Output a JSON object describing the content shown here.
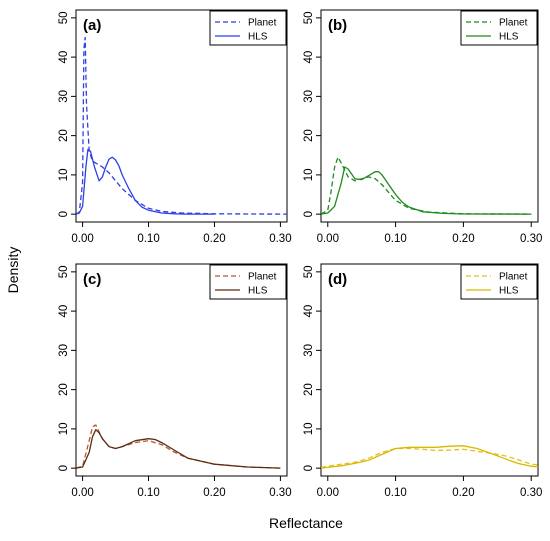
{
  "figure": {
    "ylabel": "Density",
    "xlabel": "Reflectance"
  },
  "chart_data": [
    {
      "type": "line",
      "panel_label": "(a)",
      "xlim": [
        -0.01,
        0.31
      ],
      "ylim": [
        -2,
        52
      ],
      "xticks": [
        0.0,
        0.1,
        0.2,
        0.3
      ],
      "xtick_labels": [
        "0.00",
        "0.10",
        "0.20",
        "0.30"
      ],
      "yticks": [
        0,
        10,
        20,
        30,
        40,
        50
      ],
      "ytick_labels": [
        "0",
        "10",
        "20",
        "30",
        "40",
        "50"
      ],
      "legend_position": "top-right",
      "series": [
        {
          "name": "Planet",
          "color": "#2f3fe6",
          "dash": "dashed",
          "x": [
            -0.01,
            -0.005,
            0.0,
            0.002,
            0.004,
            0.006,
            0.01,
            0.015,
            0.02,
            0.03,
            0.04,
            0.05,
            0.06,
            0.08,
            0.1,
            0.12,
            0.15,
            0.2,
            0.25,
            0.3,
            0.31
          ],
          "y": [
            0,
            0.5,
            8,
            42,
            45,
            28,
            16,
            13.5,
            13,
            12,
            10.5,
            8.5,
            6.5,
            3.5,
            1.5,
            0.7,
            0.3,
            0.1,
            0.05,
            0,
            0
          ]
        },
        {
          "name": "HLS",
          "color": "#2f3fe6",
          "dash": "solid",
          "x": [
            -0.01,
            -0.005,
            0.0,
            0.005,
            0.008,
            0.012,
            0.018,
            0.025,
            0.03,
            0.035,
            0.04,
            0.045,
            0.05,
            0.055,
            0.06,
            0.07,
            0.08,
            0.09,
            0.1,
            0.12,
            0.14,
            0.16,
            0.2
          ],
          "y": [
            0,
            0.3,
            2,
            12,
            16.5,
            16,
            12,
            8.5,
            9.5,
            12,
            14,
            14.5,
            13.8,
            12.3,
            10,
            6.5,
            3.5,
            1.8,
            1,
            0.3,
            0.1,
            0,
            0
          ]
        }
      ]
    },
    {
      "type": "line",
      "panel_label": "(b)",
      "xlim": [
        -0.01,
        0.31
      ],
      "ylim": [
        -2,
        52
      ],
      "xticks": [
        0.0,
        0.1,
        0.2,
        0.3
      ],
      "xtick_labels": [
        "0.00",
        "0.10",
        "0.20",
        "0.30"
      ],
      "yticks": [
        0,
        10,
        20,
        30,
        40,
        50
      ],
      "ytick_labels": [
        "0",
        "10",
        "20",
        "30",
        "40",
        "50"
      ],
      "legend_position": "top-right",
      "series": [
        {
          "name": "Planet",
          "color": "#1f8a1f",
          "dash": "dashed",
          "x": [
            -0.01,
            0.0,
            0.005,
            0.01,
            0.015,
            0.02,
            0.03,
            0.04,
            0.05,
            0.06,
            0.07,
            0.08,
            0.09,
            0.1,
            0.12,
            0.15,
            0.2,
            0.3
          ],
          "y": [
            0,
            1,
            6,
            12,
            14.5,
            13,
            9.5,
            8.5,
            9,
            9.5,
            9,
            7.5,
            5.5,
            3.5,
            1.5,
            0.5,
            0.1,
            0
          ]
        },
        {
          "name": "HLS",
          "color": "#1f8a1f",
          "dash": "solid",
          "x": [
            -0.01,
            0.0,
            0.01,
            0.02,
            0.025,
            0.03,
            0.04,
            0.05,
            0.06,
            0.07,
            0.075,
            0.08,
            0.09,
            0.1,
            0.11,
            0.12,
            0.14,
            0.17,
            0.2,
            0.3
          ],
          "y": [
            0,
            0.3,
            2,
            8,
            12,
            11.5,
            9,
            8.8,
            9.8,
            10.8,
            10.8,
            10,
            7.5,
            5,
            3,
            1.8,
            0.6,
            0.2,
            0.05,
            0
          ]
        }
      ]
    },
    {
      "type": "line",
      "panel_label": "(c)",
      "xlim": [
        -0.01,
        0.31
      ],
      "ylim": [
        -2,
        52
      ],
      "xticks": [
        0.0,
        0.1,
        0.2,
        0.3
      ],
      "xtick_labels": [
        "0.00",
        "0.10",
        "0.20",
        "0.30"
      ],
      "yticks": [
        0,
        10,
        20,
        30,
        40,
        50
      ],
      "ytick_labels": [
        "0",
        "10",
        "20",
        "30",
        "40",
        "50"
      ],
      "legend_position": "top-right",
      "series": [
        {
          "name": "Planet",
          "color": "#b5562b",
          "dash": "dashed",
          "x": [
            -0.01,
            0.0,
            0.01,
            0.015,
            0.02,
            0.03,
            0.04,
            0.05,
            0.06,
            0.08,
            0.1,
            0.12,
            0.14,
            0.16,
            0.2,
            0.25,
            0.3
          ],
          "y": [
            0,
            0.5,
            7,
            10.5,
            11,
            7.5,
            5.5,
            5,
            5.5,
            6.5,
            7,
            6,
            4,
            2.5,
            1,
            0.3,
            0
          ]
        },
        {
          "name": "HLS",
          "color": "#5a2d14",
          "dash": "solid",
          "x": [
            -0.01,
            0.0,
            0.01,
            0.015,
            0.02,
            0.025,
            0.03,
            0.04,
            0.05,
            0.06,
            0.08,
            0.1,
            0.11,
            0.12,
            0.14,
            0.16,
            0.2,
            0.25,
            0.3
          ],
          "y": [
            0,
            0.3,
            4,
            8,
            9.8,
            9,
            7.5,
            5.5,
            5,
            5.5,
            7,
            7.5,
            7.3,
            6.5,
            4.5,
            2.5,
            1,
            0.3,
            0
          ]
        }
      ]
    },
    {
      "type": "line",
      "panel_label": "(d)",
      "xlim": [
        -0.01,
        0.31
      ],
      "ylim": [
        -2,
        52
      ],
      "xticks": [
        0.0,
        0.1,
        0.2,
        0.3
      ],
      "xtick_labels": [
        "0.00",
        "0.10",
        "0.20",
        "0.30"
      ],
      "yticks": [
        0,
        10,
        20,
        30,
        40,
        50
      ],
      "ytick_labels": [
        "0",
        "10",
        "20",
        "30",
        "40",
        "50"
      ],
      "legend_position": "top-right",
      "series": [
        {
          "name": "Planet",
          "color": "#e3c21a",
          "dash": "dashed",
          "x": [
            -0.01,
            0.0,
            0.02,
            0.04,
            0.06,
            0.08,
            0.1,
            0.12,
            0.14,
            0.16,
            0.18,
            0.2,
            0.22,
            0.24,
            0.26,
            0.28,
            0.3,
            0.31
          ],
          "y": [
            0.2,
            0.5,
            1,
            1.5,
            2.5,
            4,
            5,
            5,
            4.8,
            4.5,
            4.6,
            4.8,
            4.3,
            3.8,
            3.2,
            2.2,
            1,
            0.8
          ]
        },
        {
          "name": "HLS",
          "color": "#d9b800",
          "dash": "solid",
          "x": [
            -0.01,
            0.0,
            0.02,
            0.04,
            0.06,
            0.08,
            0.1,
            0.12,
            0.14,
            0.16,
            0.18,
            0.2,
            0.22,
            0.24,
            0.26,
            0.28,
            0.3,
            0.31
          ],
          "y": [
            0,
            0.2,
            0.6,
            1.2,
            2,
            3.5,
            5,
            5.3,
            5.3,
            5.3,
            5.6,
            5.7,
            5,
            3.8,
            2.5,
            1.2,
            0.5,
            0.3
          ]
        }
      ]
    }
  ]
}
